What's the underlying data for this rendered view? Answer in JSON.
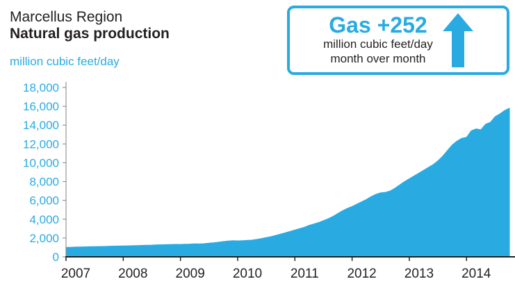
{
  "header": {
    "title_line1": "Marcellus Region",
    "title_line2": "Natural gas production",
    "y_axis_unit": "million cubic feet/day"
  },
  "callout": {
    "headline": "Gas +252",
    "line1": "million cubic feet/day",
    "line2": "month over month",
    "icon": "up-arrow-icon"
  },
  "colors": {
    "accent": "#29abe2",
    "text": "#231f20",
    "axis": "#231f20"
  },
  "chart_data": {
    "type": "area",
    "title": "Marcellus Region Natural gas production",
    "ylabel": "million cubic feet/day",
    "xlabel": "",
    "ylim": [
      0,
      18000
    ],
    "ytick_interval": 2000,
    "xlim": [
      2007,
      2014.75
    ],
    "xticks": [
      2007,
      2008,
      2009,
      2010,
      2011,
      2012,
      2013,
      2014
    ],
    "grid": false,
    "legend": "none",
    "fill_color": "#29abe2",
    "x_start": 2007.0,
    "x_step_years": 0.0833333,
    "x_unit": "year (monthly samples)",
    "values": [
      1000,
      1020,
      1040,
      1050,
      1060,
      1080,
      1090,
      1100,
      1110,
      1120,
      1140,
      1150,
      1160,
      1170,
      1190,
      1200,
      1220,
      1240,
      1250,
      1270,
      1280,
      1300,
      1310,
      1330,
      1320,
      1340,
      1360,
      1390,
      1370,
      1400,
      1450,
      1500,
      1560,
      1620,
      1680,
      1720,
      1700,
      1720,
      1750,
      1780,
      1850,
      1950,
      2050,
      2150,
      2280,
      2420,
      2560,
      2700,
      2850,
      3000,
      3150,
      3350,
      3500,
      3650,
      3850,
      4050,
      4300,
      4600,
      4900,
      5150,
      5350,
      5600,
      5850,
      6100,
      6400,
      6650,
      6800,
      6850,
      7000,
      7300,
      7650,
      8000,
      8300,
      8600,
      8900,
      9200,
      9500,
      9800,
      10200,
      10700,
      11300,
      11900,
      12300,
      12600,
      12700,
      13400,
      13600,
      13500,
      14100,
      14300,
      14900,
      15200,
      15548,
      15800
    ]
  }
}
